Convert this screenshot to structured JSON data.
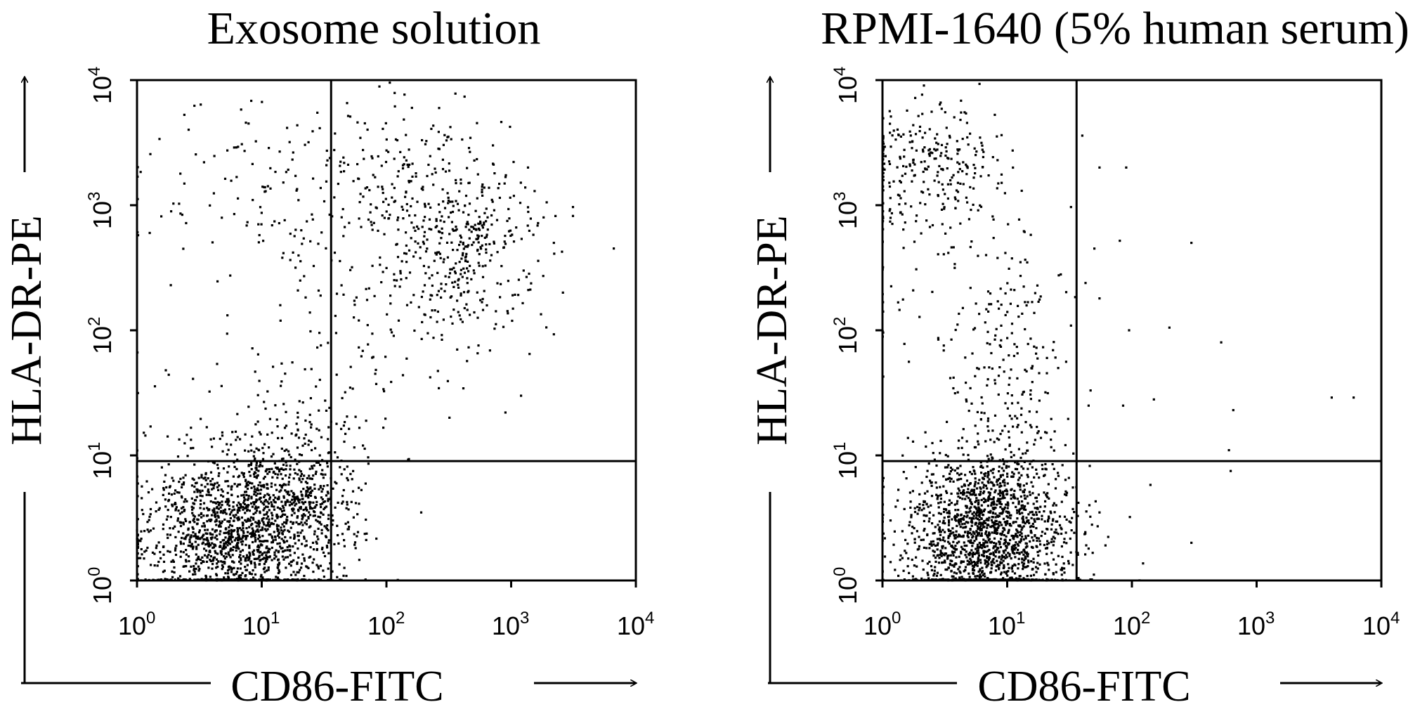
{
  "chart_data": [
    {
      "type": "scatter",
      "title": "Exosome solution",
      "xlabel": "CD86-FITC",
      "ylabel": "HLA-DR-PE",
      "x_scale": "log",
      "y_scale": "log",
      "xlim": [
        1,
        10000
      ],
      "ylim": [
        1,
        10000
      ],
      "x_ticks": [
        {
          "base": "10",
          "exp": "0"
        },
        {
          "base": "10",
          "exp": "1"
        },
        {
          "base": "10",
          "exp": "2"
        },
        {
          "base": "10",
          "exp": "3"
        },
        {
          "base": "10",
          "exp": "4"
        }
      ],
      "y_ticks": [
        {
          "base": "10",
          "exp": "0"
        },
        {
          "base": "10",
          "exp": "1"
        },
        {
          "base": "10",
          "exp": "2"
        },
        {
          "base": "10",
          "exp": "3"
        },
        {
          "base": "10",
          "exp": "4"
        }
      ],
      "quadrant_gates": {
        "x": 36,
        "y": 9
      },
      "clusters": [
        {
          "name": "",
          "center": [
            6,
            2.2
          ],
          "spread": [
            2.3,
            2.2
          ],
          "count": 1500
        },
        {
          "name": "",
          "center": [
            18,
            5
          ],
          "spread": [
            1.8,
            1.9
          ],
          "count": 420
        },
        {
          "name": "",
          "center": [
            380,
            420
          ],
          "spread": [
            2.1,
            2.2
          ],
          "count": 360
        },
        {
          "name": "",
          "center": [
            180,
            1600
          ],
          "spread": [
            2.9,
            2.2
          ],
          "count": 220
        },
        {
          "name": "",
          "center": [
            9,
            1600
          ],
          "spread": [
            3.2,
            2.2
          ],
          "count": 120
        },
        {
          "name": "",
          "center": [
            45,
            60
          ],
          "spread": [
            2.6,
            3.2
          ],
          "count": 90
        },
        {
          "name": "",
          "center": [
            10,
            35
          ],
          "spread": [
            4.0,
            3.0
          ],
          "count": 45
        }
      ],
      "sparse_points": [
        [
          60,
          5.5
        ],
        [
          190,
          3.5
        ],
        [
          320,
          20
        ],
        [
          900,
          22
        ],
        [
          1200,
          30
        ],
        [
          2600,
          200
        ],
        [
          2200,
          500
        ]
      ],
      "colors": {
        "points": "#000000",
        "frame": "#000000",
        "background": "#ffffff"
      }
    },
    {
      "type": "scatter",
      "title": "RPMI-1640 (5% human serum)",
      "xlabel": "CD86-FITC",
      "ylabel": "HLA-DR-PE",
      "x_scale": "log",
      "y_scale": "log",
      "xlim": [
        1,
        10000
      ],
      "ylim": [
        1,
        10000
      ],
      "x_ticks": [
        {
          "base": "10",
          "exp": "0"
        },
        {
          "base": "10",
          "exp": "1"
        },
        {
          "base": "10",
          "exp": "2"
        },
        {
          "base": "10",
          "exp": "3"
        },
        {
          "base": "10",
          "exp": "4"
        }
      ],
      "y_ticks": [
        {
          "base": "10",
          "exp": "0"
        },
        {
          "base": "10",
          "exp": "1"
        },
        {
          "base": "10",
          "exp": "2"
        },
        {
          "base": "10",
          "exp": "3"
        },
        {
          "base": "10",
          "exp": "4"
        }
      ],
      "quadrant_gates": {
        "x": 36,
        "y": 9
      },
      "clusters": [
        {
          "name": "",
          "center": [
            7,
            2.3
          ],
          "spread": [
            2.2,
            2.2
          ],
          "count": 1700
        },
        {
          "name": "",
          "center": [
            2.3,
            2200
          ],
          "spread": [
            2.0,
            1.9
          ],
          "count": 280
        },
        {
          "name": "",
          "center": [
            10,
            35
          ],
          "spread": [
            1.8,
            3.8
          ],
          "count": 230
        },
        {
          "name": "",
          "center": [
            4,
            200
          ],
          "spread": [
            2.6,
            3.2
          ],
          "count": 60
        }
      ],
      "sparse_points": [
        [
          40,
          3600
        ],
        [
          55,
          2000
        ],
        [
          90,
          2000
        ],
        [
          50,
          450
        ],
        [
          80,
          520
        ],
        [
          300,
          500
        ],
        [
          55,
          180
        ],
        [
          95,
          100
        ],
        [
          200,
          105
        ],
        [
          520,
          80
        ],
        [
          45,
          25
        ],
        [
          85,
          25
        ],
        [
          150,
          28
        ],
        [
          650,
          23
        ],
        [
          4000,
          29
        ],
        [
          6000,
          29
        ],
        [
          600,
          11
        ],
        [
          620,
          7.5
        ],
        [
          55,
          3.5
        ],
        [
          300,
          2
        ],
        [
          45,
          1.8
        ]
      ],
      "colors": {
        "points": "#000000",
        "frame": "#000000",
        "background": "#ffffff"
      }
    }
  ]
}
